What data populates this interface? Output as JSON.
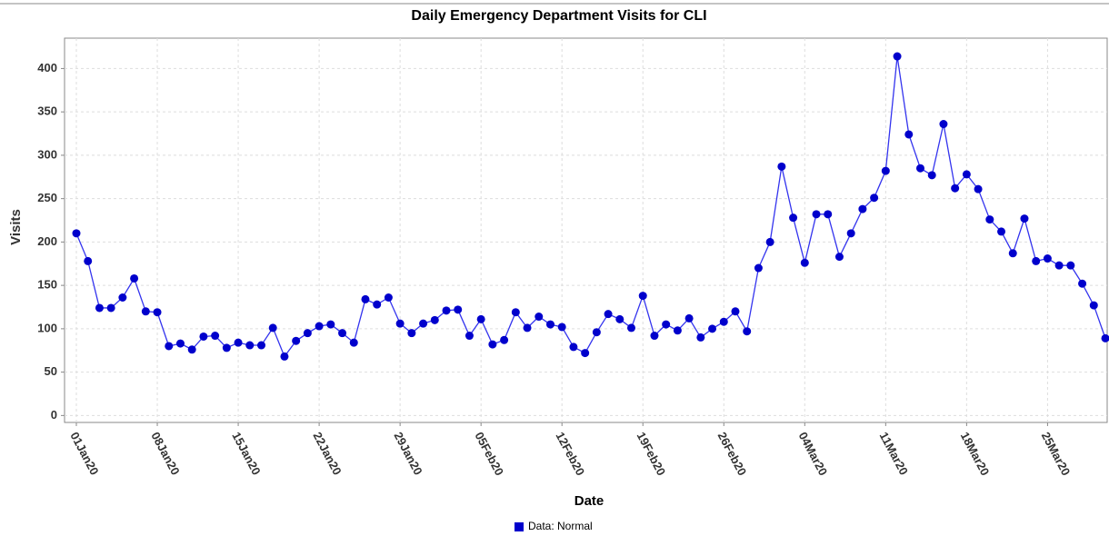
{
  "chart_data": {
    "type": "line",
    "title": "Daily Emergency Department Visits for CLI",
    "x_label": "Date",
    "y_label": "Visits",
    "categories": [
      "01Jan20",
      null,
      null,
      null,
      null,
      null,
      null,
      "08Jan20",
      null,
      null,
      null,
      null,
      null,
      null,
      "15Jan20",
      null,
      null,
      null,
      null,
      null,
      null,
      "22Jan20",
      null,
      null,
      null,
      null,
      null,
      null,
      "29Jan20",
      null,
      null,
      null,
      null,
      null,
      null,
      "05Feb20",
      null,
      null,
      null,
      null,
      null,
      null,
      "12Feb20",
      null,
      null,
      null,
      null,
      null,
      null,
      "19Feb20",
      null,
      null,
      null,
      null,
      null,
      null,
      "26Feb20",
      null,
      null,
      null,
      null,
      null,
      null,
      "04Mar20",
      null,
      null,
      null,
      null,
      null,
      null,
      "11Mar20",
      null,
      null,
      null,
      null,
      null,
      null,
      "18Mar20",
      null,
      null,
      null,
      null,
      null,
      null,
      "25Mar20",
      null,
      null,
      null,
      null,
      null
    ],
    "series": [
      {
        "name": "Data: Normal",
        "color": "#0000cc",
        "line_color": "#3333ee",
        "values": [
          210,
          178,
          124,
          124,
          136,
          158,
          120,
          119,
          80,
          83,
          76,
          91,
          92,
          78,
          84,
          81,
          81,
          101,
          68,
          86,
          95,
          103,
          105,
          95,
          84,
          134,
          128,
          136,
          106,
          95,
          106,
          110,
          121,
          122,
          92,
          111,
          82,
          87,
          119,
          101,
          114,
          105,
          102,
          79,
          72,
          96,
          117,
          111,
          101,
          138,
          92,
          105,
          98,
          112,
          90,
          100,
          108,
          120,
          97,
          170,
          200,
          287,
          228,
          176,
          232,
          232,
          183,
          210,
          238,
          251,
          282,
          414,
          324,
          285,
          277,
          336,
          262,
          278,
          261,
          226,
          212,
          187,
          227,
          178,
          181,
          173,
          173,
          152,
          127,
          89
        ]
      }
    ],
    "ylim": [
      -8,
      435
    ],
    "yticks": [
      0,
      50,
      100,
      150,
      200,
      250,
      300,
      350,
      400
    ],
    "grid": true
  }
}
